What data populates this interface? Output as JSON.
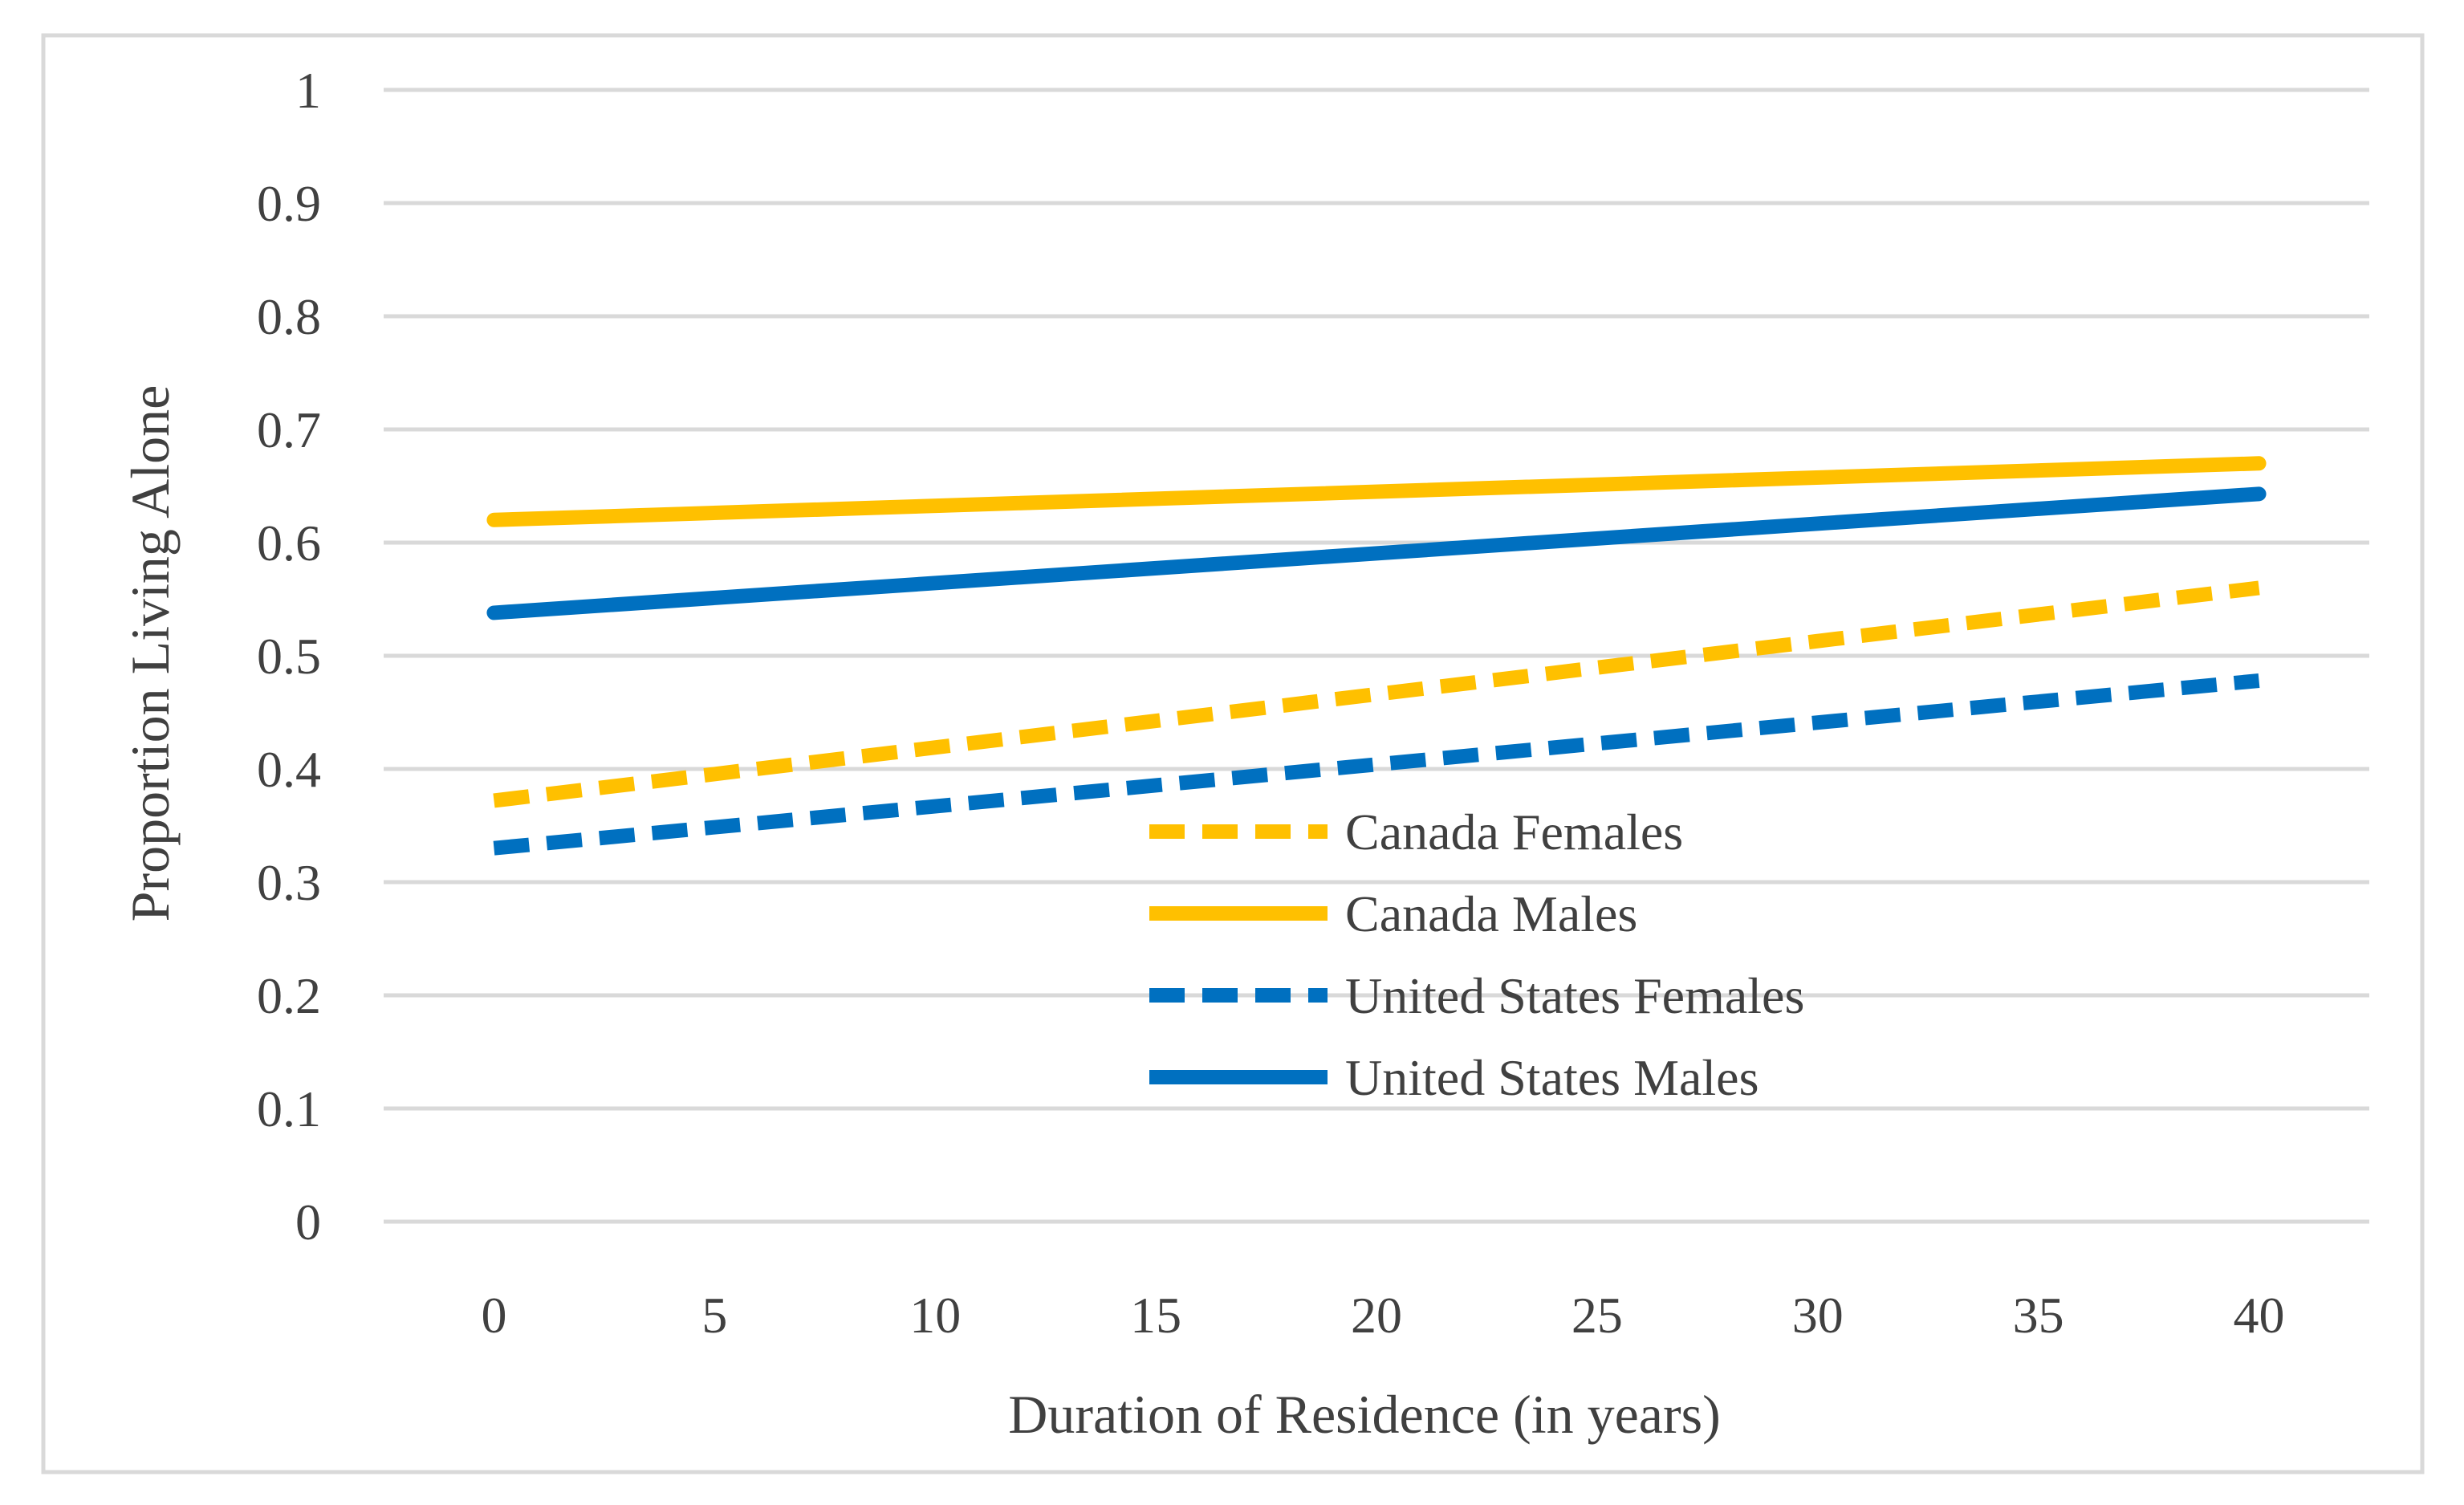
{
  "chart_data": {
    "type": "line",
    "title": "",
    "xlabel": "Duration of Residence (in years)",
    "ylabel": "Proportion Living Alone",
    "x": [
      0,
      40
    ],
    "xticks": [
      "0",
      "5",
      "10",
      "15",
      "20",
      "25",
      "30",
      "35",
      "40"
    ],
    "xtick_values": [
      0,
      5,
      10,
      15,
      20,
      25,
      30,
      35,
      40
    ],
    "yticks": [
      "0",
      "0.1",
      "0.2",
      "0.3",
      "0.4",
      "0.5",
      "0.6",
      "0.7",
      "0.8",
      "0.9",
      "1"
    ],
    "ytick_values": [
      0,
      0.1,
      0.2,
      0.3,
      0.4,
      0.5,
      0.6,
      0.7,
      0.8,
      0.9,
      1
    ],
    "xlim": [
      -2.5,
      42.5
    ],
    "ylim": [
      0,
      1
    ],
    "grid": "horizontal",
    "legend_position": "center-right",
    "series": [
      {
        "name": "Canada Females",
        "values": [
          0.372,
          0.56
        ],
        "color": "#FFC000",
        "style": "dashed"
      },
      {
        "name": "Canada Males",
        "values": [
          0.62,
          0.67
        ],
        "color": "#FFC000",
        "style": "solid"
      },
      {
        "name": "United States Females",
        "values": [
          0.33,
          0.478
        ],
        "color": "#0070C0",
        "style": "dashed"
      },
      {
        "name": "United States Males",
        "values": [
          0.538,
          0.643
        ],
        "color": "#0070C0",
        "style": "solid"
      }
    ]
  }
}
